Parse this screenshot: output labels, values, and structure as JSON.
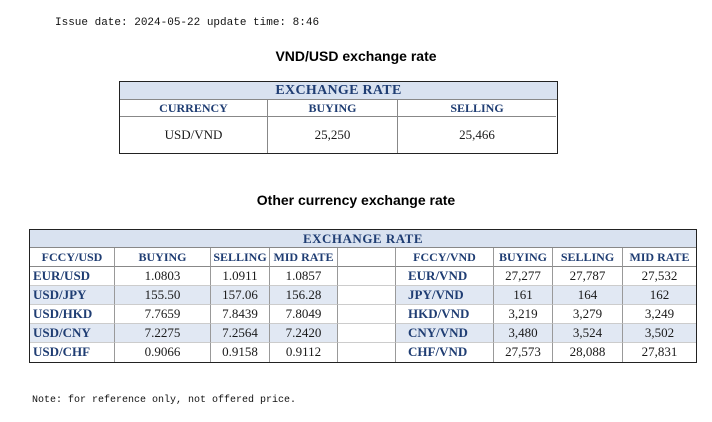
{
  "header": {
    "issue_line": "Issue date: 2024-05-22 update time: 8:46"
  },
  "vnd_usd": {
    "title": "VND/USD exchange rate",
    "table_title": "EXCHANGE RATE",
    "columns": [
      "CURRENCY",
      "BUYING",
      "SELLING"
    ],
    "row": {
      "currency": "USD/VND",
      "buying": "25,250",
      "selling": "25,466"
    }
  },
  "other": {
    "title": "Other currency exchange rate",
    "table_title": "EXCHANGE RATE",
    "left_columns": [
      "FCCY/USD",
      "BUYING",
      "SELLING",
      "MID RATE"
    ],
    "right_columns": [
      "FCCY/VND",
      "BUYING",
      "SELLING",
      "MID RATE"
    ],
    "rows": [
      {
        "l_pair": "EUR/USD",
        "l_buy": "1.0803",
        "l_sell": "1.0911",
        "l_mid": "1.0857",
        "r_pair": "EUR/VND",
        "r_buy": "27,277",
        "r_sell": "27,787",
        "r_mid": "27,532"
      },
      {
        "l_pair": "USD/JPY",
        "l_buy": "155.50",
        "l_sell": "157.06",
        "l_mid": "156.28",
        "r_pair": "JPY/VND",
        "r_buy": "161",
        "r_sell": "164",
        "r_mid": "162"
      },
      {
        "l_pair": "USD/HKD",
        "l_buy": "7.7659",
        "l_sell": "7.8439",
        "l_mid": "7.8049",
        "r_pair": "HKD/VND",
        "r_buy": "3,219",
        "r_sell": "3,279",
        "r_mid": "3,249"
      },
      {
        "l_pair": "USD/CNY",
        "l_buy": "7.2275",
        "l_sell": "7.2564",
        "l_mid": "7.2420",
        "r_pair": "CNY/VND",
        "r_buy": "3,480",
        "r_sell": "3,524",
        "r_mid": "3,502"
      },
      {
        "l_pair": "USD/CHF",
        "l_buy": "0.9066",
        "l_sell": "0.9158",
        "l_mid": "0.9112",
        "r_pair": "CHF/VND",
        "r_buy": "27,573",
        "r_sell": "28,088",
        "r_mid": "27,831"
      }
    ]
  },
  "footer": {
    "note": "Note: for reference only, not offered price."
  },
  "colors": {
    "header_bg": "#d9e2f0",
    "header_text": "#1f3d73",
    "row_alt_bg": "#e1e8f3"
  }
}
